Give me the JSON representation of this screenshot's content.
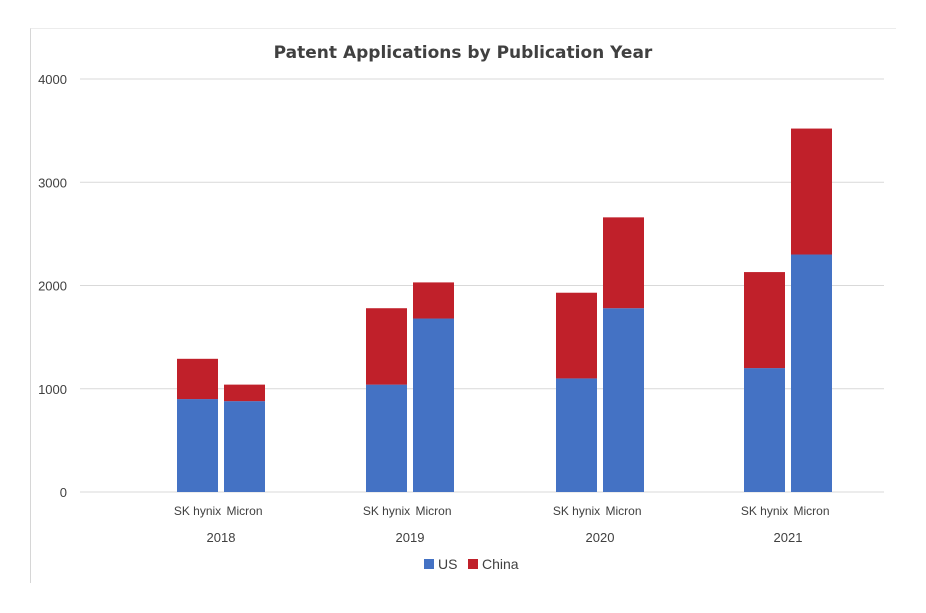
{
  "chart_data": {
    "type": "bar",
    "stacked": true,
    "title": "Patent Applications by Publication Year",
    "xlabel": "",
    "ylabel": "",
    "ylim": [
      0,
      4000
    ],
    "yticks": [
      0,
      1000,
      2000,
      3000,
      4000
    ],
    "grid": true,
    "legend_position": "bottom",
    "groups": [
      "2018",
      "2019",
      "2020",
      "2021"
    ],
    "categories": [
      "SK hynix",
      "Micron",
      "SK hynix",
      "Micron",
      "SK hynix",
      "Micron",
      "SK hynix",
      "Micron"
    ],
    "series": [
      {
        "name": "US",
        "color": "#4472c4",
        "values": [
          900,
          880,
          1040,
          1680,
          1100,
          1780,
          1200,
          2300
        ]
      },
      {
        "name": "China",
        "color": "#c0202a",
        "values": [
          390,
          160,
          740,
          350,
          830,
          880,
          930,
          1220
        ]
      }
    ]
  }
}
